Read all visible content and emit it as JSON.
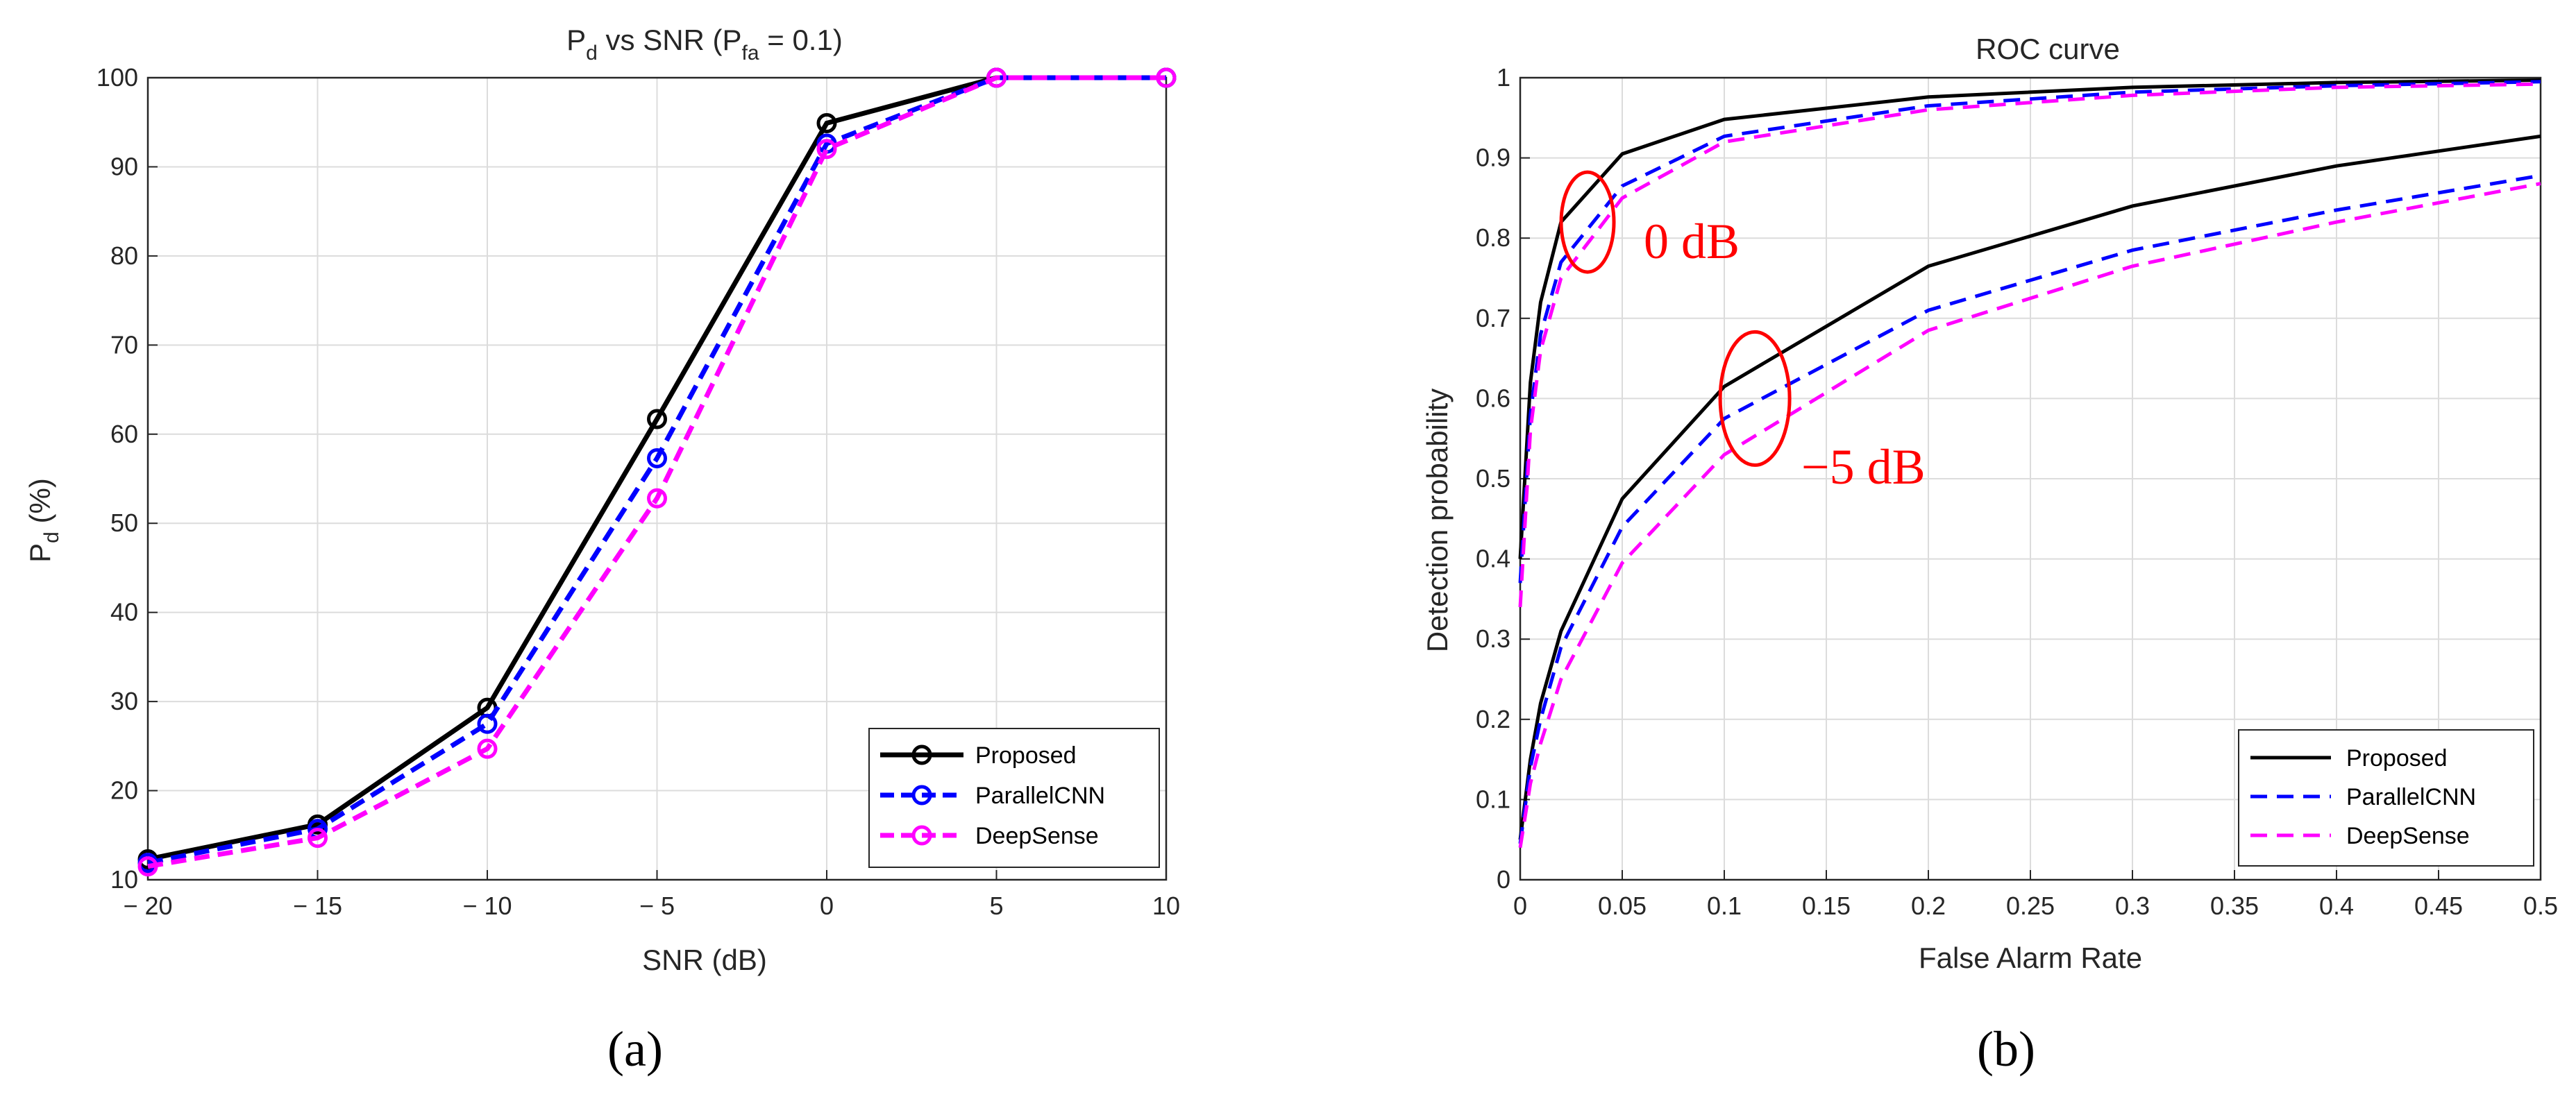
{
  "colors": {
    "proposed": "#000000",
    "parallelcnn": "#0000ff",
    "deepsense": "#ff00ff",
    "annotation": "#ff0000"
  },
  "chart_data": [
    {
      "type": "line",
      "panel_label": "(a)",
      "title": {
        "base": "P",
        "sub": "d",
        "mid": " vs SNR (P",
        "sub2": "fa",
        "tail": " = 0.1)"
      },
      "xlabel": "SNR (dB)",
      "ylabel": {
        "base": "P",
        "sub": "d",
        "tail": " (%)"
      },
      "xlim": [
        -20,
        10
      ],
      "ylim": [
        10,
        100
      ],
      "xticks": [
        -20,
        -15,
        -10,
        -5,
        0,
        5,
        10
      ],
      "xtick_labels": [
        "− 20",
        "− 15",
        "− 10",
        "− 5",
        "0",
        "5",
        "10"
      ],
      "yticks": [
        10,
        20,
        30,
        40,
        50,
        60,
        70,
        80,
        90,
        100
      ],
      "grid": true,
      "legend_position": "bottom-right",
      "x": [
        -20,
        -15,
        -10,
        -5,
        0,
        5,
        10
      ],
      "series": [
        {
          "name": "Proposed",
          "values": [
            12.3,
            16.2,
            29.3,
            61.7,
            94.9,
            100,
            100
          ]
        },
        {
          "name": "ParallelCNN",
          "values": [
            11.9,
            15.7,
            27.5,
            57.3,
            92.6,
            100,
            100
          ]
        },
        {
          "name": "DeepSense",
          "values": [
            11.5,
            14.7,
            24.7,
            52.8,
            92.0,
            100,
            100
          ]
        }
      ]
    },
    {
      "type": "line",
      "panel_label": "(b)",
      "title": "ROC curve",
      "xlabel": "False Alarm Rate",
      "ylabel": "Detection probability",
      "xlim": [
        0,
        0.5
      ],
      "ylim": [
        0,
        1
      ],
      "xticks": [
        0,
        0.05,
        0.1,
        0.15,
        0.2,
        0.25,
        0.3,
        0.35,
        0.4,
        0.45,
        0.5
      ],
      "xtick_labels": [
        "0",
        "0.05",
        "0.1",
        "0.15",
        "0.2",
        "0.25",
        "0.3",
        "0.35",
        "0.4",
        "0.45",
        "0.5"
      ],
      "yticks": [
        0,
        0.1,
        0.2,
        0.3,
        0.4,
        0.5,
        0.6,
        0.7,
        0.8,
        0.9,
        1
      ],
      "ytick_labels": [
        "0",
        "0.1",
        "0.2",
        "0.3",
        "0.4",
        "0.5",
        "0.6",
        "0.7",
        "0.8",
        "0.9",
        "1"
      ],
      "grid": true,
      "legend_position": "bottom-right",
      "legend": [
        "Proposed",
        "ParallelCNN",
        "DeepSense"
      ],
      "annotations": [
        {
          "text": "0 dB",
          "x": 0.038,
          "y": 0.82
        },
        {
          "text": "−5 dB",
          "x": 0.115,
          "y": 0.6
        }
      ],
      "series": [
        {
          "name": "Proposed",
          "group": "0 dB",
          "x": [
            0,
            0.005,
            0.01,
            0.02,
            0.05,
            0.1,
            0.2,
            0.3,
            0.4,
            0.5
          ],
          "y": [
            0.4,
            0.62,
            0.72,
            0.82,
            0.905,
            0.948,
            0.976,
            0.988,
            0.994,
            0.997
          ]
        },
        {
          "name": "ParallelCNN",
          "group": "0 dB",
          "x": [
            0,
            0.005,
            0.01,
            0.02,
            0.05,
            0.1,
            0.2,
            0.3,
            0.4,
            0.5
          ],
          "y": [
            0.37,
            0.58,
            0.68,
            0.77,
            0.865,
            0.927,
            0.965,
            0.982,
            0.99,
            0.995
          ]
        },
        {
          "name": "DeepSense",
          "group": "0 dB",
          "x": [
            0,
            0.005,
            0.01,
            0.02,
            0.05,
            0.1,
            0.2,
            0.3,
            0.4,
            0.5
          ],
          "y": [
            0.34,
            0.56,
            0.66,
            0.75,
            0.85,
            0.92,
            0.96,
            0.978,
            0.988,
            0.992
          ]
        },
        {
          "name": "Proposed",
          "group": "−5 dB",
          "x": [
            0,
            0.005,
            0.01,
            0.02,
            0.05,
            0.1,
            0.2,
            0.3,
            0.4,
            0.5
          ],
          "y": [
            0.05,
            0.15,
            0.22,
            0.31,
            0.475,
            0.615,
            0.765,
            0.84,
            0.89,
            0.927
          ]
        },
        {
          "name": "ParallelCNN",
          "group": "−5 dB",
          "x": [
            0,
            0.005,
            0.01,
            0.02,
            0.05,
            0.1,
            0.2,
            0.3,
            0.4,
            0.5
          ],
          "y": [
            0.045,
            0.14,
            0.2,
            0.29,
            0.44,
            0.575,
            0.71,
            0.785,
            0.835,
            0.878
          ]
        },
        {
          "name": "DeepSense",
          "group": "−5 dB",
          "x": [
            0,
            0.005,
            0.01,
            0.02,
            0.05,
            0.1,
            0.2,
            0.3,
            0.4,
            0.5
          ],
          "y": [
            0.04,
            0.12,
            0.17,
            0.25,
            0.395,
            0.53,
            0.685,
            0.765,
            0.82,
            0.868
          ]
        }
      ]
    }
  ]
}
